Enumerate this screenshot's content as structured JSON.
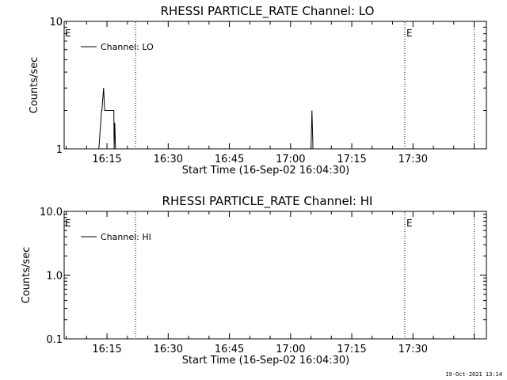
{
  "footer": {
    "timestamp": "19-Oct-2021 13:14"
  },
  "chart_data": [
    {
      "type": "line",
      "title": "RHESSI PARTICLE_RATE Channel: LO",
      "xlabel": "Start Time (16-Sep-02 16:04:30)",
      "ylabel": "Counts/sec",
      "yscale": "log",
      "xlim": [
        "16:04:30",
        "17:48:00"
      ],
      "ylim": [
        1,
        10
      ],
      "x_ticks": [
        "16:15",
        "16:30",
        "16:45",
        "17:00",
        "17:15",
        "17:30"
      ],
      "y_ticks": [
        {
          "value": 1,
          "label": "1"
        },
        {
          "value": 10,
          "label": "10"
        }
      ],
      "legend": {
        "position": "top-left",
        "entries": [
          "Channel: LO"
        ]
      },
      "event_lines": [
        {
          "time": "16:22:00",
          "label": ""
        },
        {
          "time": "17:28:00",
          "label": "E"
        },
        {
          "time": "17:45:00",
          "label": ""
        }
      ],
      "left_marker": "E",
      "series": [
        {
          "name": "Channel: LO",
          "color": "#000000",
          "points": [
            [
              "16:13:00",
              1
            ],
            [
              "16:13:40",
              2
            ],
            [
              "16:13:45",
              2
            ],
            [
              "16:14:10",
              3
            ],
            [
              "16:14:25",
              2
            ],
            [
              "16:16:40",
              2
            ],
            [
              "16:16:45",
              1
            ],
            [
              "16:16:55",
              1.6
            ],
            [
              "16:17:05",
              1
            ],
            [
              "17:05:00",
              1
            ],
            [
              "17:05:15",
              2
            ],
            [
              "17:05:30",
              1
            ]
          ]
        }
      ]
    },
    {
      "type": "line",
      "title": "RHESSI PARTICLE_RATE Channel: HI",
      "xlabel": "Start Time (16-Sep-02 16:04:30)",
      "ylabel": "Counts/sec",
      "yscale": "log",
      "xlim": [
        "16:04:30",
        "17:48:00"
      ],
      "ylim": [
        0.1,
        10
      ],
      "x_ticks": [
        "16:15",
        "16:30",
        "16:45",
        "17:00",
        "17:15",
        "17:30"
      ],
      "y_ticks": [
        {
          "value": 0.1,
          "label": "0.1"
        },
        {
          "value": 1,
          "label": "1.0"
        },
        {
          "value": 10,
          "label": "10.0"
        }
      ],
      "legend": {
        "position": "top-left",
        "entries": [
          "Channel: HI"
        ]
      },
      "event_lines": [
        {
          "time": "16:22:00",
          "label": ""
        },
        {
          "time": "17:28:00",
          "label": "E"
        },
        {
          "time": "17:45:00",
          "label": ""
        }
      ],
      "left_marker": "E",
      "series": [
        {
          "name": "Channel: HI",
          "color": "#000000",
          "points": []
        }
      ]
    }
  ]
}
